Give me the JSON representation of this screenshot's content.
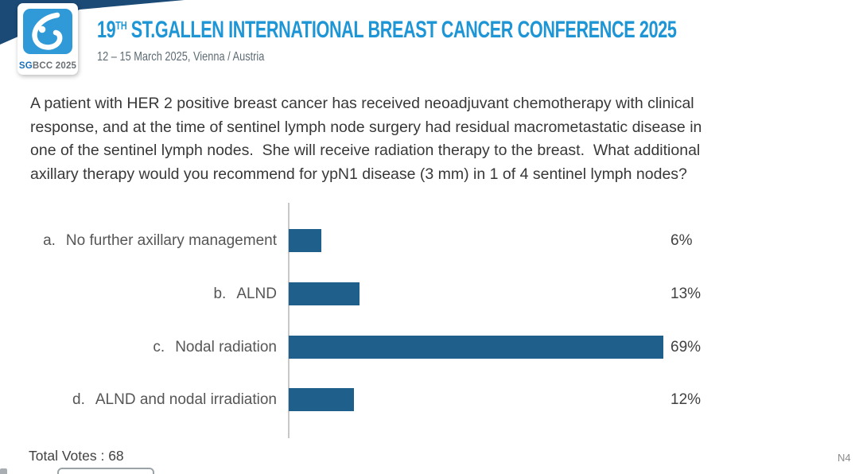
{
  "header": {
    "logo": {
      "bold": "SG",
      "rest": "BCC 2025",
      "icon": "sgbcc-droplet-logo"
    },
    "title_number": "19",
    "title_ordinal": "TH",
    "title_text": "ST.GALLEN INTERNATIONAL BREAST CANCER CONFERENCE 2025",
    "subtitle": "12 – 15 March 2025, Vienna / Austria"
  },
  "question_lines": [
    "A patient with HER 2 positive breast cancer has received neoadjuvant chemotherapy with clinical",
    "response, and at the time of sentinel lymph node surgery had residual macrometastatic disease in",
    "one of the sentinel lymph nodes.  She will receive radiation therapy to the breast.  What additional",
    "axillary therapy would you recommend for ypN1 disease (3 mm) in 1 of 4 sentinel lymph nodes?"
  ],
  "chart_data": {
    "type": "bar",
    "orientation": "horizontal",
    "title": "",
    "xlabel": "",
    "ylabel": "",
    "xlim": [
      0,
      100
    ],
    "grid": false,
    "legend": false,
    "categories": [
      "a.  No further axillary management",
      "b.  ALND",
      "c.  Nodal radiation",
      "d.  ALND and nodal irradiation"
    ],
    "values": [
      6,
      13,
      69,
      12
    ],
    "options": [
      {
        "letter": "a.",
        "label": "No further axillary management",
        "value": 6,
        "pct_label": "6%"
      },
      {
        "letter": "b.",
        "label": "ALND",
        "value": 13,
        "pct_label": "13%"
      },
      {
        "letter": "c.",
        "label": "Nodal radiation",
        "value": 69,
        "pct_label": "69%"
      },
      {
        "letter": "d.",
        "label": "ALND and nodal irradiation",
        "value": 12,
        "pct_label": "12%"
      }
    ],
    "bar_color": "#1e5f8c"
  },
  "footer": {
    "total_votes": "Total Votes : 68",
    "slide_code": "N4"
  },
  "colors": {
    "ribbon_navy": "#1b4a77",
    "title_blue": "#1e96d6",
    "logo_blue": "#2f9ad7",
    "axis_gray": "#c8c8c8"
  }
}
